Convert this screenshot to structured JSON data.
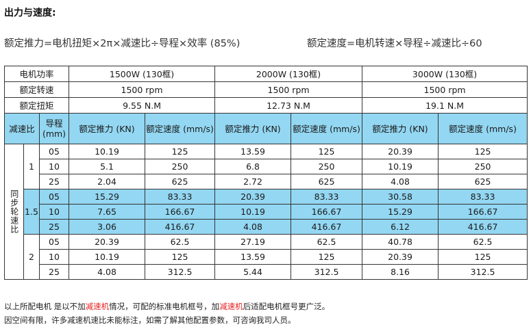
{
  "title": "出力与速度:",
  "formulas": {
    "thrust": "额定推力=电机扭矩×2π×减速比÷导程×效率 (85%)",
    "speed": "额定速度=电机转速×导程÷减速比÷60"
  },
  "table": {
    "labels": {
      "motor_power": "电机功率",
      "rated_rpm": "额定转速",
      "rated_torque": "额定扭矩",
      "ratio": "减速比",
      "lead": "导程 (mm)",
      "thrust": "额定推力 (KN)",
      "speed": "额定速度 (mm/s)",
      "side": "同步轮速比"
    },
    "motors": [
      {
        "power": "1500W (130框)",
        "rpm": "1500 rpm",
        "torque": "9.55 N.M"
      },
      {
        "power": "2000W (130框)",
        "rpm": "1500 rpm",
        "torque": "12.73 N.M"
      },
      {
        "power": "3000W (130框)",
        "rpm": "1500 rpm",
        "torque": "19.1 N.M"
      }
    ],
    "groups": [
      {
        "ratio": "1",
        "rows": [
          {
            "lead": "05",
            "v": [
              "10.19",
              "125",
              "13.59",
              "125",
              "20.39",
              "125"
            ]
          },
          {
            "lead": "10",
            "v": [
              "5.1",
              "250",
              "6.8",
              "250",
              "10.19",
              "250"
            ]
          },
          {
            "lead": "25",
            "v": [
              "2.04",
              "625",
              "2.72",
              "625",
              "4.08",
              "625"
            ]
          }
        ]
      },
      {
        "ratio": "1.5",
        "rows": [
          {
            "lead": "05",
            "v": [
              "15.29",
              "83.33",
              "20.39",
              "83.33",
              "30.58",
              "83.33"
            ]
          },
          {
            "lead": "10",
            "v": [
              "7.65",
              "166.67",
              "10.19",
              "166.67",
              "15.29",
              "166.67"
            ]
          },
          {
            "lead": "25",
            "v": [
              "3.06",
              "416.67",
              "4.08",
              "416.67",
              "6.12",
              "416.67"
            ]
          }
        ]
      },
      {
        "ratio": "2",
        "rows": [
          {
            "lead": "05",
            "v": [
              "20.39",
              "62.5",
              "27.19",
              "62.5",
              "40.78",
              "62.5"
            ]
          },
          {
            "lead": "10",
            "v": [
              "10.19",
              "125",
              "13.59",
              "125",
              "20.39",
              "125"
            ]
          },
          {
            "lead": "25",
            "v": [
              "4.08",
              "312.5",
              "5.44",
              "312.5",
              "8.16",
              "312.5"
            ]
          }
        ]
      }
    ]
  },
  "notes": {
    "line1": [
      "以上所配电机 是以不加",
      "减速机",
      "情况，可配的标准电机框号，加",
      "减速机",
      "后适配电机框号更广泛。"
    ],
    "line2": "因空间有限，许多减速机速比未能标注，如需了解其他配置参数，可咨询我司人员。"
  },
  "colors": {
    "header_bg": "#93d7f2",
    "highlight_text": "#e8211f"
  }
}
